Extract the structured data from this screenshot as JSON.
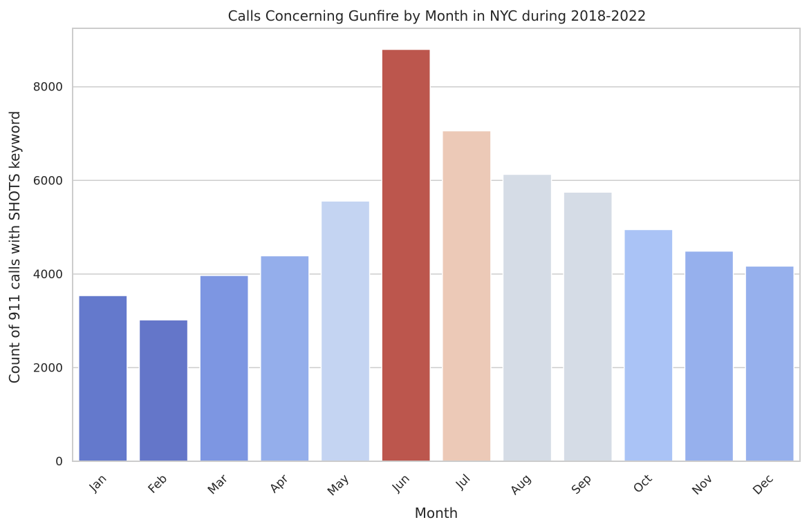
{
  "chart_data": {
    "type": "bar",
    "title": "Calls Concerning Gunfire by Month in NYC during 2018-2022",
    "xlabel": "Month",
    "ylabel": "Count of 911 calls with SHOTS keyword",
    "categories": [
      "Jan",
      "Feb",
      "Mar",
      "Apr",
      "May",
      "Jun",
      "Jul",
      "Aug",
      "Sep",
      "Oct",
      "Nov",
      "Dec"
    ],
    "values": [
      3540,
      3020,
      3970,
      4390,
      5560,
      8800,
      7060,
      6130,
      5750,
      4950,
      4490,
      4170
    ],
    "colors": [
      "#6479cc",
      "#6476c9",
      "#7d96e2",
      "#94aeeb",
      "#c4d4f2",
      "#bc564d",
      "#ecc9b7",
      "#d5dce6",
      "#d5dce6",
      "#aac3f6",
      "#96b0ed",
      "#96b0ed"
    ],
    "ylim": [
      0,
      9250
    ],
    "yticks": [
      0,
      2000,
      4000,
      6000,
      8000
    ],
    "grid": "horizontal",
    "legend": "none"
  }
}
